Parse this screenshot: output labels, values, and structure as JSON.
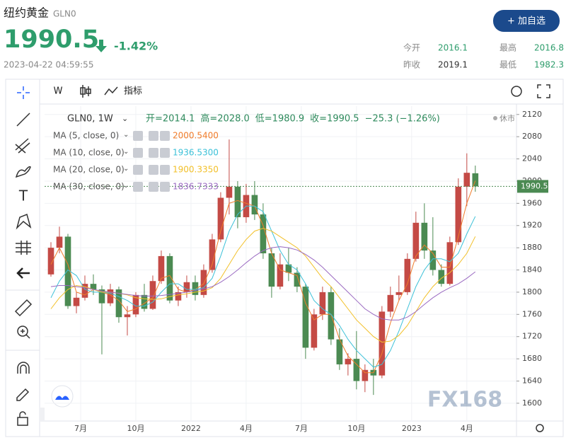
{
  "header": {
    "title": "纽约黄金",
    "code": "GLN0",
    "price": "1990.5",
    "change_pct": "-1.42%",
    "timestamp": "2023-04-22 04:59:55",
    "button": "+ 加自选",
    "stats": [
      {
        "label": "今开",
        "value": "2016.1"
      },
      {
        "label": "最高",
        "value": "2016.8"
      },
      {
        "label": "昨收",
        "value": "2019.1"
      },
      {
        "label": "最低",
        "value": "1982.3"
      }
    ]
  },
  "toolbar": {
    "interval": "W",
    "indicators": "指标"
  },
  "chart_data": {
    "type": "candlestick",
    "symbol": "GLN0, 1W",
    "ohlc_labels": [
      "开=2014.1",
      "高=2028.0",
      "低=1980.9",
      "收=1990.5",
      "−25.3 (−1.26%)"
    ],
    "status": "休市",
    "watermark": "FX168",
    "up_color": "#c44a45",
    "down_color": "#4b8a52",
    "grid": true,
    "xlim": [
      -0.5,
      110.7
    ],
    "ylim": [
      1568,
      2135
    ],
    "xticks": [
      {
        "value": 8,
        "label": "7月"
      },
      {
        "value": 21,
        "label": "10月"
      },
      {
        "value": 34,
        "label": "2022"
      },
      {
        "value": 47,
        "label": "4月"
      },
      {
        "value": 60,
        "label": "7月"
      },
      {
        "value": 73,
        "label": "10月"
      },
      {
        "value": 86,
        "label": "2023"
      },
      {
        "value": 99,
        "label": "4月"
      }
    ],
    "yticks": [
      1600,
      1640,
      1680,
      1720,
      1760,
      1800,
      1840,
      1880,
      1920,
      1960,
      2000,
      2040,
      2080,
      2120
    ],
    "x": [
      1,
      3,
      5,
      7,
      9,
      11,
      13,
      15,
      17,
      19,
      21,
      23,
      25,
      27,
      29,
      31,
      33,
      35,
      37,
      39,
      41,
      43,
      45,
      47,
      49,
      51,
      53,
      55,
      57,
      59,
      61,
      63,
      65,
      67,
      69,
      71,
      73,
      75,
      77,
      79,
      81,
      83,
      85,
      87,
      89,
      91,
      93,
      95,
      97,
      99,
      101
    ],
    "open": [
      1832,
      1880,
      1900,
      1775,
      1790,
      1815,
      1805,
      1780,
      1805,
      1755,
      1760,
      1795,
      1770,
      1820,
      1865,
      1785,
      1800,
      1818,
      1795,
      1840,
      1895,
      1970,
      1990,
      1935,
      1975,
      1940,
      1870,
      1810,
      1850,
      1835,
      1810,
      1700,
      1760,
      1800,
      1715,
      1670,
      1680,
      1640,
      1660,
      1650,
      1765,
      1795,
      1800,
      1860,
      1925,
      1875,
      1840,
      1815,
      1890,
      1990,
      2014.1
    ],
    "high": [
      1890,
      1918,
      1905,
      1800,
      1830,
      1832,
      1812,
      1815,
      1810,
      1775,
      1800,
      1815,
      1830,
      1875,
      1870,
      1810,
      1830,
      1830,
      1850,
      1905,
      1980,
      2075,
      2000,
      1995,
      2000,
      1960,
      1880,
      1870,
      1880,
      1845,
      1815,
      1770,
      1810,
      1810,
      1735,
      1690,
      1730,
      1670,
      1680,
      1775,
      1810,
      1830,
      1870,
      1945,
      1960,
      1935,
      1850,
      1900,
      2005,
      2050,
      2028.0
    ],
    "low": [
      1828,
      1870,
      1770,
      1762,
      1785,
      1795,
      1688,
      1775,
      1745,
      1722,
      1755,
      1765,
      1768,
      1815,
      1780,
      1775,
      1790,
      1785,
      1790,
      1835,
      1890,
      1940,
      1915,
      1925,
      1930,
      1860,
      1790,
      1805,
      1820,
      1800,
      1680,
      1695,
      1750,
      1705,
      1660,
      1650,
      1625,
      1620,
      1615,
      1645,
      1755,
      1785,
      1795,
      1855,
      1860,
      1830,
      1810,
      1812,
      1885,
      1955,
      1980.9
    ],
    "close": [
      1880,
      1900,
      1775,
      1790,
      1815,
      1805,
      1780,
      1805,
      1755,
      1760,
      1795,
      1770,
      1820,
      1865,
      1785,
      1800,
      1818,
      1795,
      1840,
      1895,
      1970,
      1990,
      1935,
      1975,
      1940,
      1870,
      1810,
      1850,
      1835,
      1810,
      1700,
      1760,
      1800,
      1715,
      1670,
      1680,
      1640,
      1660,
      1650,
      1765,
      1795,
      1800,
      1860,
      1925,
      1875,
      1840,
      1815,
      1890,
      1990,
      2015,
      1990.5
    ],
    "series": [
      {
        "name": "MA (5, close, 0)",
        "color": "#f07c2a",
        "last_value_label": "2000.5400",
        "values": [
          1850,
          1880,
          1850,
          1800,
          1795,
          1805,
          1800,
          1795,
          1785,
          1765,
          1770,
          1780,
          1790,
          1825,
          1830,
          1805,
          1800,
          1805,
          1815,
          1850,
          1910,
          1960,
          1965,
          1960,
          1955,
          1920,
          1870,
          1840,
          1835,
          1830,
          1780,
          1750,
          1760,
          1760,
          1715,
          1685,
          1670,
          1655,
          1655,
          1690,
          1745,
          1785,
          1815,
          1865,
          1885,
          1870,
          1845,
          1845,
          1900,
          1960,
          2000.54
        ]
      },
      {
        "name": "MA (10, close, 0)",
        "color": "#3cc1d8",
        "last_value_label": "1936.5300",
        "values": [
          1790,
          1820,
          1840,
          1830,
          1805,
          1800,
          1800,
          1798,
          1792,
          1785,
          1775,
          1775,
          1782,
          1800,
          1815,
          1815,
          1805,
          1805,
          1808,
          1825,
          1865,
          1910,
          1940,
          1955,
          1955,
          1945,
          1910,
          1875,
          1850,
          1840,
          1815,
          1785,
          1770,
          1760,
          1740,
          1715,
          1695,
          1680,
          1665,
          1670,
          1695,
          1730,
          1770,
          1810,
          1840,
          1860,
          1860,
          1855,
          1870,
          1905,
          1936.53
        ]
      },
      {
        "name": "MA (20, close, 0)",
        "color": "#f2c029",
        "last_value_label": "1900.3350",
        "values": [
          1770,
          1790,
          1805,
          1812,
          1810,
          1805,
          1800,
          1800,
          1798,
          1795,
          1790,
          1788,
          1787,
          1788,
          1792,
          1795,
          1797,
          1800,
          1802,
          1808,
          1825,
          1850,
          1875,
          1895,
          1910,
          1915,
          1910,
          1900,
          1890,
          1880,
          1865,
          1845,
          1825,
          1810,
          1790,
          1770,
          1750,
          1735,
          1720,
          1710,
          1712,
          1722,
          1740,
          1765,
          1790,
          1810,
          1825,
          1835,
          1850,
          1870,
          1900.335
        ]
      },
      {
        "name": "MA (30, close, 0)",
        "color": "#9b6bc2",
        "last_value_label": "1836.7333",
        "values": [
          1810,
          1812,
          1812,
          1810,
          1808,
          1805,
          1802,
          1800,
          1798,
          1796,
          1794,
          1793,
          1793,
          1794,
          1796,
          1798,
          1800,
          1803,
          1806,
          1810,
          1818,
          1828,
          1840,
          1853,
          1865,
          1875,
          1880,
          1882,
          1880,
          1876,
          1868,
          1858,
          1845,
          1830,
          1815,
          1800,
          1785,
          1770,
          1760,
          1752,
          1750,
          1750,
          1755,
          1765,
          1778,
          1790,
          1800,
          1808,
          1815,
          1825,
          1836.7333
        ]
      }
    ]
  }
}
